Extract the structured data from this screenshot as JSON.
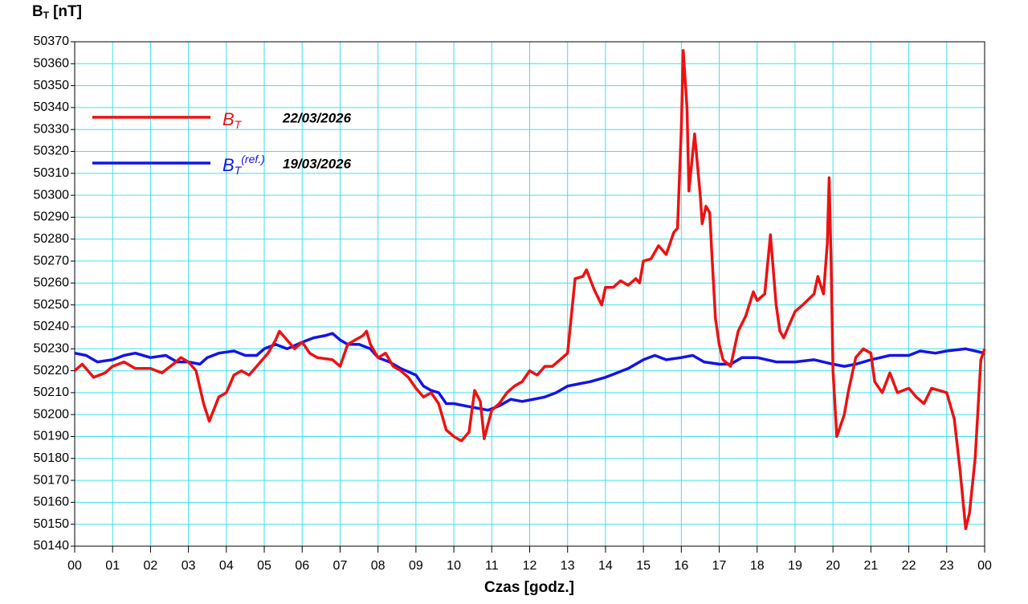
{
  "chart_data": {
    "type": "line",
    "y_label": {
      "text": "B",
      "subscript": "T",
      "unit": "[nT]"
    },
    "x_label": "Czas [godz.]",
    "xlim": [
      0,
      24
    ],
    "xticks": [
      {
        "value": 0,
        "label": "00"
      },
      {
        "value": 1,
        "label": "01"
      },
      {
        "value": 2,
        "label": "02"
      },
      {
        "value": 3,
        "label": "03"
      },
      {
        "value": 4,
        "label": "04"
      },
      {
        "value": 5,
        "label": "05"
      },
      {
        "value": 6,
        "label": "06"
      },
      {
        "value": 7,
        "label": "07"
      },
      {
        "value": 8,
        "label": "08"
      },
      {
        "value": 9,
        "label": "09"
      },
      {
        "value": 10,
        "label": "10"
      },
      {
        "value": 11,
        "label": "11"
      },
      {
        "value": 12,
        "label": "12"
      },
      {
        "value": 13,
        "label": "13"
      },
      {
        "value": 14,
        "label": "14"
      },
      {
        "value": 15,
        "label": "15"
      },
      {
        "value": 16,
        "label": "16"
      },
      {
        "value": 17,
        "label": "17"
      },
      {
        "value": 18,
        "label": "18"
      },
      {
        "value": 19,
        "label": "19"
      },
      {
        "value": 20,
        "label": "20"
      },
      {
        "value": 21,
        "label": "21"
      },
      {
        "value": 22,
        "label": "22"
      },
      {
        "value": 23,
        "label": "23"
      },
      {
        "value": 24,
        "label": "00"
      }
    ],
    "ylim": [
      50140,
      50370
    ],
    "yticks": [
      50140,
      50150,
      50160,
      50170,
      50180,
      50190,
      50200,
      50210,
      50220,
      50230,
      50240,
      50250,
      50260,
      50270,
      50280,
      50290,
      50300,
      50310,
      50320,
      50330,
      50340,
      50350,
      50360,
      50370
    ],
    "grid": true,
    "grid_color": "#3ee0ef",
    "series": [
      {
        "name": "B",
        "subscript": "T",
        "date": "22/03/2026",
        "color": "#ee1111",
        "x": [
          0,
          0.2,
          0.5,
          0.8,
          1.0,
          1.3,
          1.6,
          2.0,
          2.3,
          2.6,
          2.8,
          3.0,
          3.2,
          3.4,
          3.55,
          3.8,
          4.0,
          4.2,
          4.4,
          4.6,
          4.9,
          5.1,
          5.3,
          5.4,
          5.6,
          5.8,
          6.0,
          6.2,
          6.4,
          6.8,
          7.0,
          7.2,
          7.4,
          7.6,
          7.7,
          7.8,
          8.0,
          8.2,
          8.4,
          8.6,
          8.8,
          9.0,
          9.2,
          9.4,
          9.6,
          9.8,
          10.0,
          10.2,
          10.4,
          10.55,
          10.7,
          10.8,
          11.0,
          11.2,
          11.4,
          11.6,
          11.8,
          12.0,
          12.2,
          12.4,
          12.6,
          12.8,
          13.0,
          13.1,
          13.2,
          13.4,
          13.5,
          13.7,
          13.9,
          14.0,
          14.2,
          14.4,
          14.6,
          14.8,
          14.9,
          15.0,
          15.2,
          15.4,
          15.6,
          15.8,
          15.9,
          16.0,
          16.05,
          16.15,
          16.2,
          16.35,
          16.5,
          16.55,
          16.65,
          16.75,
          16.8,
          16.9,
          17.0,
          17.1,
          17.3,
          17.5,
          17.7,
          17.9,
          18.0,
          18.2,
          18.35,
          18.5,
          18.6,
          18.7,
          18.9,
          19.0,
          19.2,
          19.5,
          19.6,
          19.75,
          19.85,
          19.9,
          19.95,
          20.0,
          20.1,
          20.3,
          20.4,
          20.6,
          20.8,
          21.0,
          21.1,
          21.3,
          21.5,
          21.7,
          22.0,
          22.2,
          22.4,
          22.6,
          22.8,
          23.0,
          23.2,
          23.35,
          23.5,
          23.6,
          23.75,
          23.9,
          24.0
        ],
        "values": [
          50220,
          50223,
          50217,
          50219,
          50222,
          50224,
          50221,
          50221,
          50219,
          50223,
          50226,
          50224,
          50220,
          50205,
          50197,
          50208,
          50210,
          50218,
          50220,
          50218,
          50224,
          50228,
          50234,
          50238,
          50234,
          50230,
          50233,
          50228,
          50226,
          50225,
          50222,
          50232,
          50234,
          50236,
          50238,
          50232,
          50226,
          50228,
          50222,
          50220,
          50217,
          50212,
          50208,
          50210,
          50205,
          50193,
          50190,
          50188,
          50192,
          50211,
          50206,
          50189,
          50202,
          50205,
          50210,
          50213,
          50215,
          50220,
          50218,
          50222,
          50222,
          50225,
          50228,
          50245,
          50262,
          50263,
          50266,
          50257,
          50250,
          50258,
          50258,
          50261,
          50259,
          50262,
          50260,
          50270,
          50271,
          50277,
          50273,
          50283,
          50285,
          50330,
          50366,
          50340,
          50302,
          50328,
          50300,
          50287,
          50295,
          50292,
          50275,
          50244,
          50232,
          50225,
          50222,
          50238,
          50245,
          50256,
          50252,
          50255,
          50282,
          50250,
          50238,
          50235,
          50243,
          50247,
          50250,
          50255,
          50263,
          50255,
          50278,
          50308,
          50270,
          50220,
          50190,
          50200,
          50210,
          50226,
          50230,
          50228,
          50215,
          50210,
          50219,
          50210,
          50212,
          50208,
          50205,
          50212,
          50211,
          50210,
          50198,
          50175,
          50148,
          50155,
          50180,
          50225,
          50230
        ]
      },
      {
        "name": "B",
        "subscript": "T",
        "superscript": "(ref.)",
        "date": "19/03/2026",
        "color": "#1414e6",
        "x": [
          0,
          0.3,
          0.6,
          1.0,
          1.3,
          1.6,
          2.0,
          2.4,
          2.7,
          3.0,
          3.3,
          3.5,
          3.8,
          4.2,
          4.5,
          4.8,
          5.0,
          5.3,
          5.6,
          6.0,
          6.3,
          6.6,
          6.8,
          7.0,
          7.2,
          7.5,
          7.8,
          8.0,
          8.3,
          8.6,
          9.0,
          9.2,
          9.4,
          9.6,
          9.8,
          10.0,
          10.3,
          10.6,
          10.9,
          11.2,
          11.5,
          11.8,
          12.1,
          12.4,
          12.7,
          13.0,
          13.3,
          13.6,
          14.0,
          14.3,
          14.6,
          15.0,
          15.3,
          15.6,
          16.0,
          16.3,
          16.6,
          17.0,
          17.3,
          17.6,
          18.0,
          18.5,
          19.0,
          19.5,
          20.0,
          20.3,
          20.6,
          21.0,
          21.5,
          22.0,
          22.3,
          22.7,
          23.0,
          23.5,
          24.0
        ],
        "values": [
          50228,
          50227,
          50224,
          50225,
          50227,
          50228,
          50226,
          50227,
          50224,
          50224,
          50223,
          50226,
          50228,
          50229,
          50227,
          50227,
          50230,
          50232,
          50230,
          50233,
          50235,
          50236,
          50237,
          50234,
          50232,
          50232,
          50230,
          50226,
          50224,
          50221,
          50218,
          50213,
          50211,
          50210,
          50205,
          50205,
          50204,
          50203,
          50202,
          50204,
          50207,
          50206,
          50207,
          50208,
          50210,
          50213,
          50214,
          50215,
          50217,
          50219,
          50221,
          50225,
          50227,
          50225,
          50226,
          50227,
          50224,
          50223,
          50223,
          50226,
          50226,
          50224,
          50224,
          50225,
          50223,
          50222,
          50223,
          50225,
          50227,
          50227,
          50229,
          50228,
          50229,
          50230,
          50228
        ]
      }
    ]
  }
}
